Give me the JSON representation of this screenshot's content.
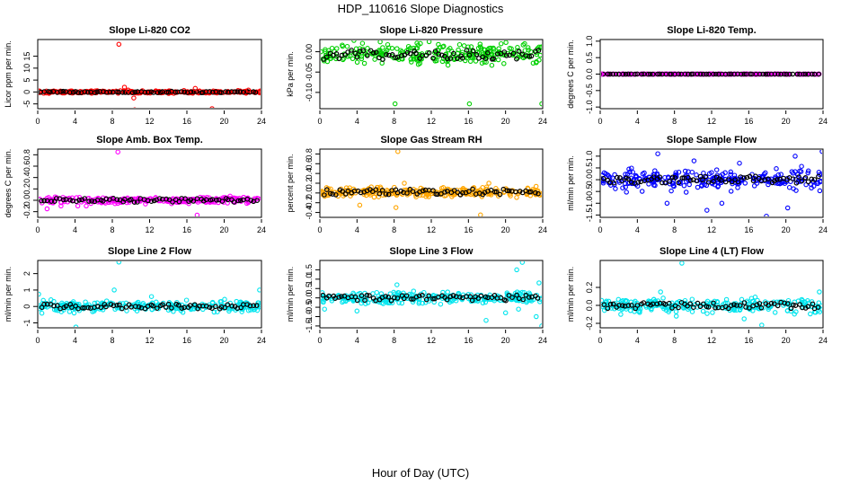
{
  "title": "HDP_110616  Slope Diagnostics",
  "xlabel": "Hour of Day (UTC)",
  "chart_data": [
    {
      "type": "scatter",
      "title": "Slope Li-820 CO2",
      "ylabel": "Licor ppm per min.",
      "xlim": [
        0,
        24
      ],
      "xticks": [
        0,
        4,
        8,
        12,
        16,
        20,
        24
      ],
      "ylim": [
        -7,
        22
      ],
      "yticks": [
        -5,
        0,
        5,
        10,
        15
      ],
      "color": "#ff0000",
      "band": {
        "center": 0,
        "halfwidth": 0.5
      },
      "black": {
        "center": 0,
        "halfwidth": 0.3
      },
      "outliers": [
        [
          8.7,
          20
        ],
        [
          9.3,
          2
        ],
        [
          10.3,
          -2.5
        ],
        [
          10.4,
          -7.5
        ],
        [
          16.9,
          1.5
        ],
        [
          18.7,
          -7
        ],
        [
          9.7,
          0.8
        ],
        [
          22.6,
          0.8
        ]
      ]
    },
    {
      "type": "scatter",
      "title": "Slope Li-820 Pressure",
      "ylabel": "kPa per min.",
      "xlim": [
        0,
        24
      ],
      "xticks": [
        0,
        4,
        8,
        12,
        16,
        20,
        24
      ],
      "ylim": [
        -0.14,
        0.03
      ],
      "yticks": [
        -0.1,
        -0.05,
        0.0
      ],
      "color": "#00d000",
      "band": {
        "center": -0.005,
        "halfwidth": 0.022
      },
      "black": {
        "center": -0.008,
        "halfwidth": 0.012
      },
      "outliers": [
        [
          8.1,
          -0.128
        ],
        [
          16.1,
          -0.128
        ],
        [
          23.9,
          -0.128
        ]
      ]
    },
    {
      "type": "scatter",
      "title": "Slope Li-820 Temp.",
      "ylabel": "degrees C per min.",
      "xlim": [
        0,
        24
      ],
      "xticks": [
        0,
        4,
        8,
        12,
        16,
        20,
        24
      ],
      "ylim": [
        -1.05,
        1.05
      ],
      "yticks": [
        -1.0,
        -0.5,
        0.0,
        0.5,
        1.0
      ],
      "color": "#ff00ff",
      "band": {
        "center": 0,
        "halfwidth": 0.005
      },
      "black": {
        "center": 0,
        "halfwidth": 0.003
      },
      "outliers": [
        [
          0.1,
          0
        ]
      ]
    },
    {
      "type": "scatter",
      "title": "Slope Amb. Box Temp.",
      "ylabel": "degrees C per min.",
      "xlim": [
        0,
        24
      ],
      "xticks": [
        0,
        4,
        8,
        12,
        16,
        20,
        24
      ],
      "ylim": [
        -0.3,
        0.9
      ],
      "yticks": [
        -0.2,
        0.0,
        0.2,
        0.4,
        0.6,
        0.8
      ],
      "color": "#ff00ff",
      "band": {
        "center": 0,
        "halfwidth": 0.05
      },
      "black": {
        "center": 0,
        "halfwidth": 0.035
      },
      "outliers": [
        [
          8.6,
          0.85
        ],
        [
          17.1,
          -0.26
        ],
        [
          1.0,
          -0.15
        ],
        [
          2.5,
          -0.1
        ],
        [
          4.3,
          -0.1
        ],
        [
          5.2,
          -0.1
        ]
      ]
    },
    {
      "type": "scatter",
      "title": "Slope Gas Stream RH",
      "ylabel": "percent per min.",
      "xlim": [
        0,
        24
      ],
      "xticks": [
        0,
        4,
        8,
        12,
        16,
        20,
        24
      ],
      "ylim": [
        -0.5,
        0.9
      ],
      "yticks": [
        -0.4,
        -0.2,
        0.0,
        0.2,
        0.4,
        0.6,
        0.8
      ],
      "color": "#ffa500",
      "band": {
        "center": 0.02,
        "halfwidth": 0.09
      },
      "black": {
        "center": 0.02,
        "halfwidth": 0.06
      },
      "outliers": [
        [
          8.4,
          0.85
        ],
        [
          17.3,
          -0.45
        ],
        [
          8.2,
          -0.3
        ],
        [
          4.3,
          -0.25
        ],
        [
          9.1,
          0.2
        ],
        [
          18.2,
          0.2
        ]
      ]
    },
    {
      "type": "scatter",
      "title": "Slope Sample Flow",
      "ylabel": "ml/min per min.",
      "xlim": [
        0,
        24
      ],
      "xticks": [
        0,
        4,
        8,
        12,
        16,
        20,
        24
      ],
      "ylim": [
        -1.6,
        1.3
      ],
      "yticks": [
        -1.5,
        -1.0,
        -0.5,
        0.0,
        0.5,
        1.0
      ],
      "color": "#0000ff",
      "band": {
        "center": 0,
        "halfwidth": 0.4
      },
      "black": {
        "center": 0,
        "halfwidth": 0.15
      },
      "outliers": [
        [
          6.2,
          1.1
        ],
        [
          7.2,
          -1.0
        ],
        [
          17.9,
          -1.55
        ],
        [
          21.0,
          1.0
        ],
        [
          23.9,
          1.2
        ],
        [
          20.2,
          -1.2
        ],
        [
          11.5,
          -1.3
        ],
        [
          13.1,
          -1.0
        ],
        [
          10.1,
          0.8
        ],
        [
          15.0,
          0.7
        ]
      ]
    },
    {
      "type": "scatter",
      "title": "Slope Line 2 Flow",
      "ylabel": "ml/min per min.",
      "xlim": [
        0,
        24
      ],
      "xticks": [
        0,
        4,
        8,
        12,
        16,
        20,
        24
      ],
      "ylim": [
        -1.3,
        2.8
      ],
      "yticks": [
        -1,
        0,
        1,
        2
      ],
      "color": "#00e5ee",
      "band": {
        "center": 0,
        "halfwidth": 0.3
      },
      "black": {
        "center": 0,
        "halfwidth": 0.15
      },
      "outliers": [
        [
          8.7,
          2.7
        ],
        [
          4.1,
          -1.25
        ],
        [
          8.2,
          1.0
        ],
        [
          0.1,
          0.75
        ],
        [
          23.8,
          1.0
        ],
        [
          3.9,
          -0.4
        ],
        [
          12.2,
          0.6
        ]
      ]
    },
    {
      "type": "scatter",
      "title": "Slope Line 3 Flow",
      "ylabel": "ml/min per min.",
      "xlim": [
        0,
        24
      ],
      "xticks": [
        0,
        4,
        8,
        12,
        16,
        20,
        24
      ],
      "ylim": [
        -1.6,
        2.0
      ],
      "yticks": [
        -1.5,
        -1.0,
        -0.5,
        0.0,
        0.5,
        1.0,
        1.5
      ],
      "color": "#00e5ee",
      "band": {
        "center": 0,
        "halfwidth": 0.3
      },
      "black": {
        "center": 0,
        "halfwidth": 0.15
      },
      "outliers": [
        [
          21.8,
          1.9
        ],
        [
          21.2,
          1.5
        ],
        [
          17.9,
          -1.2
        ],
        [
          8.3,
          0.7
        ],
        [
          23.9,
          -1.5
        ],
        [
          23.6,
          0.8
        ],
        [
          20.0,
          -0.8
        ],
        [
          21.4,
          -0.6
        ],
        [
          0.5,
          -0.6
        ],
        [
          4.0,
          -0.7
        ],
        [
          23.3,
          -1.0
        ]
      ]
    },
    {
      "type": "scatter",
      "title": "Slope Line 4 (LT) Flow",
      "ylabel": "ml/min per min.",
      "xlim": [
        0,
        24
      ],
      "xticks": [
        0,
        4,
        8,
        12,
        16,
        20,
        24
      ],
      "ylim": [
        -0.25,
        0.5
      ],
      "yticks": [
        -0.2,
        0.0,
        0.2
      ],
      "color": "#00e5ee",
      "band": {
        "center": 0,
        "halfwidth": 0.07
      },
      "black": {
        "center": 0,
        "halfwidth": 0.035
      },
      "outliers": [
        [
          8.8,
          0.47
        ],
        [
          17.4,
          -0.22
        ],
        [
          6.5,
          0.15
        ],
        [
          23.6,
          0.15
        ],
        [
          8.2,
          -0.12
        ],
        [
          15.5,
          -0.15
        ]
      ]
    }
  ]
}
